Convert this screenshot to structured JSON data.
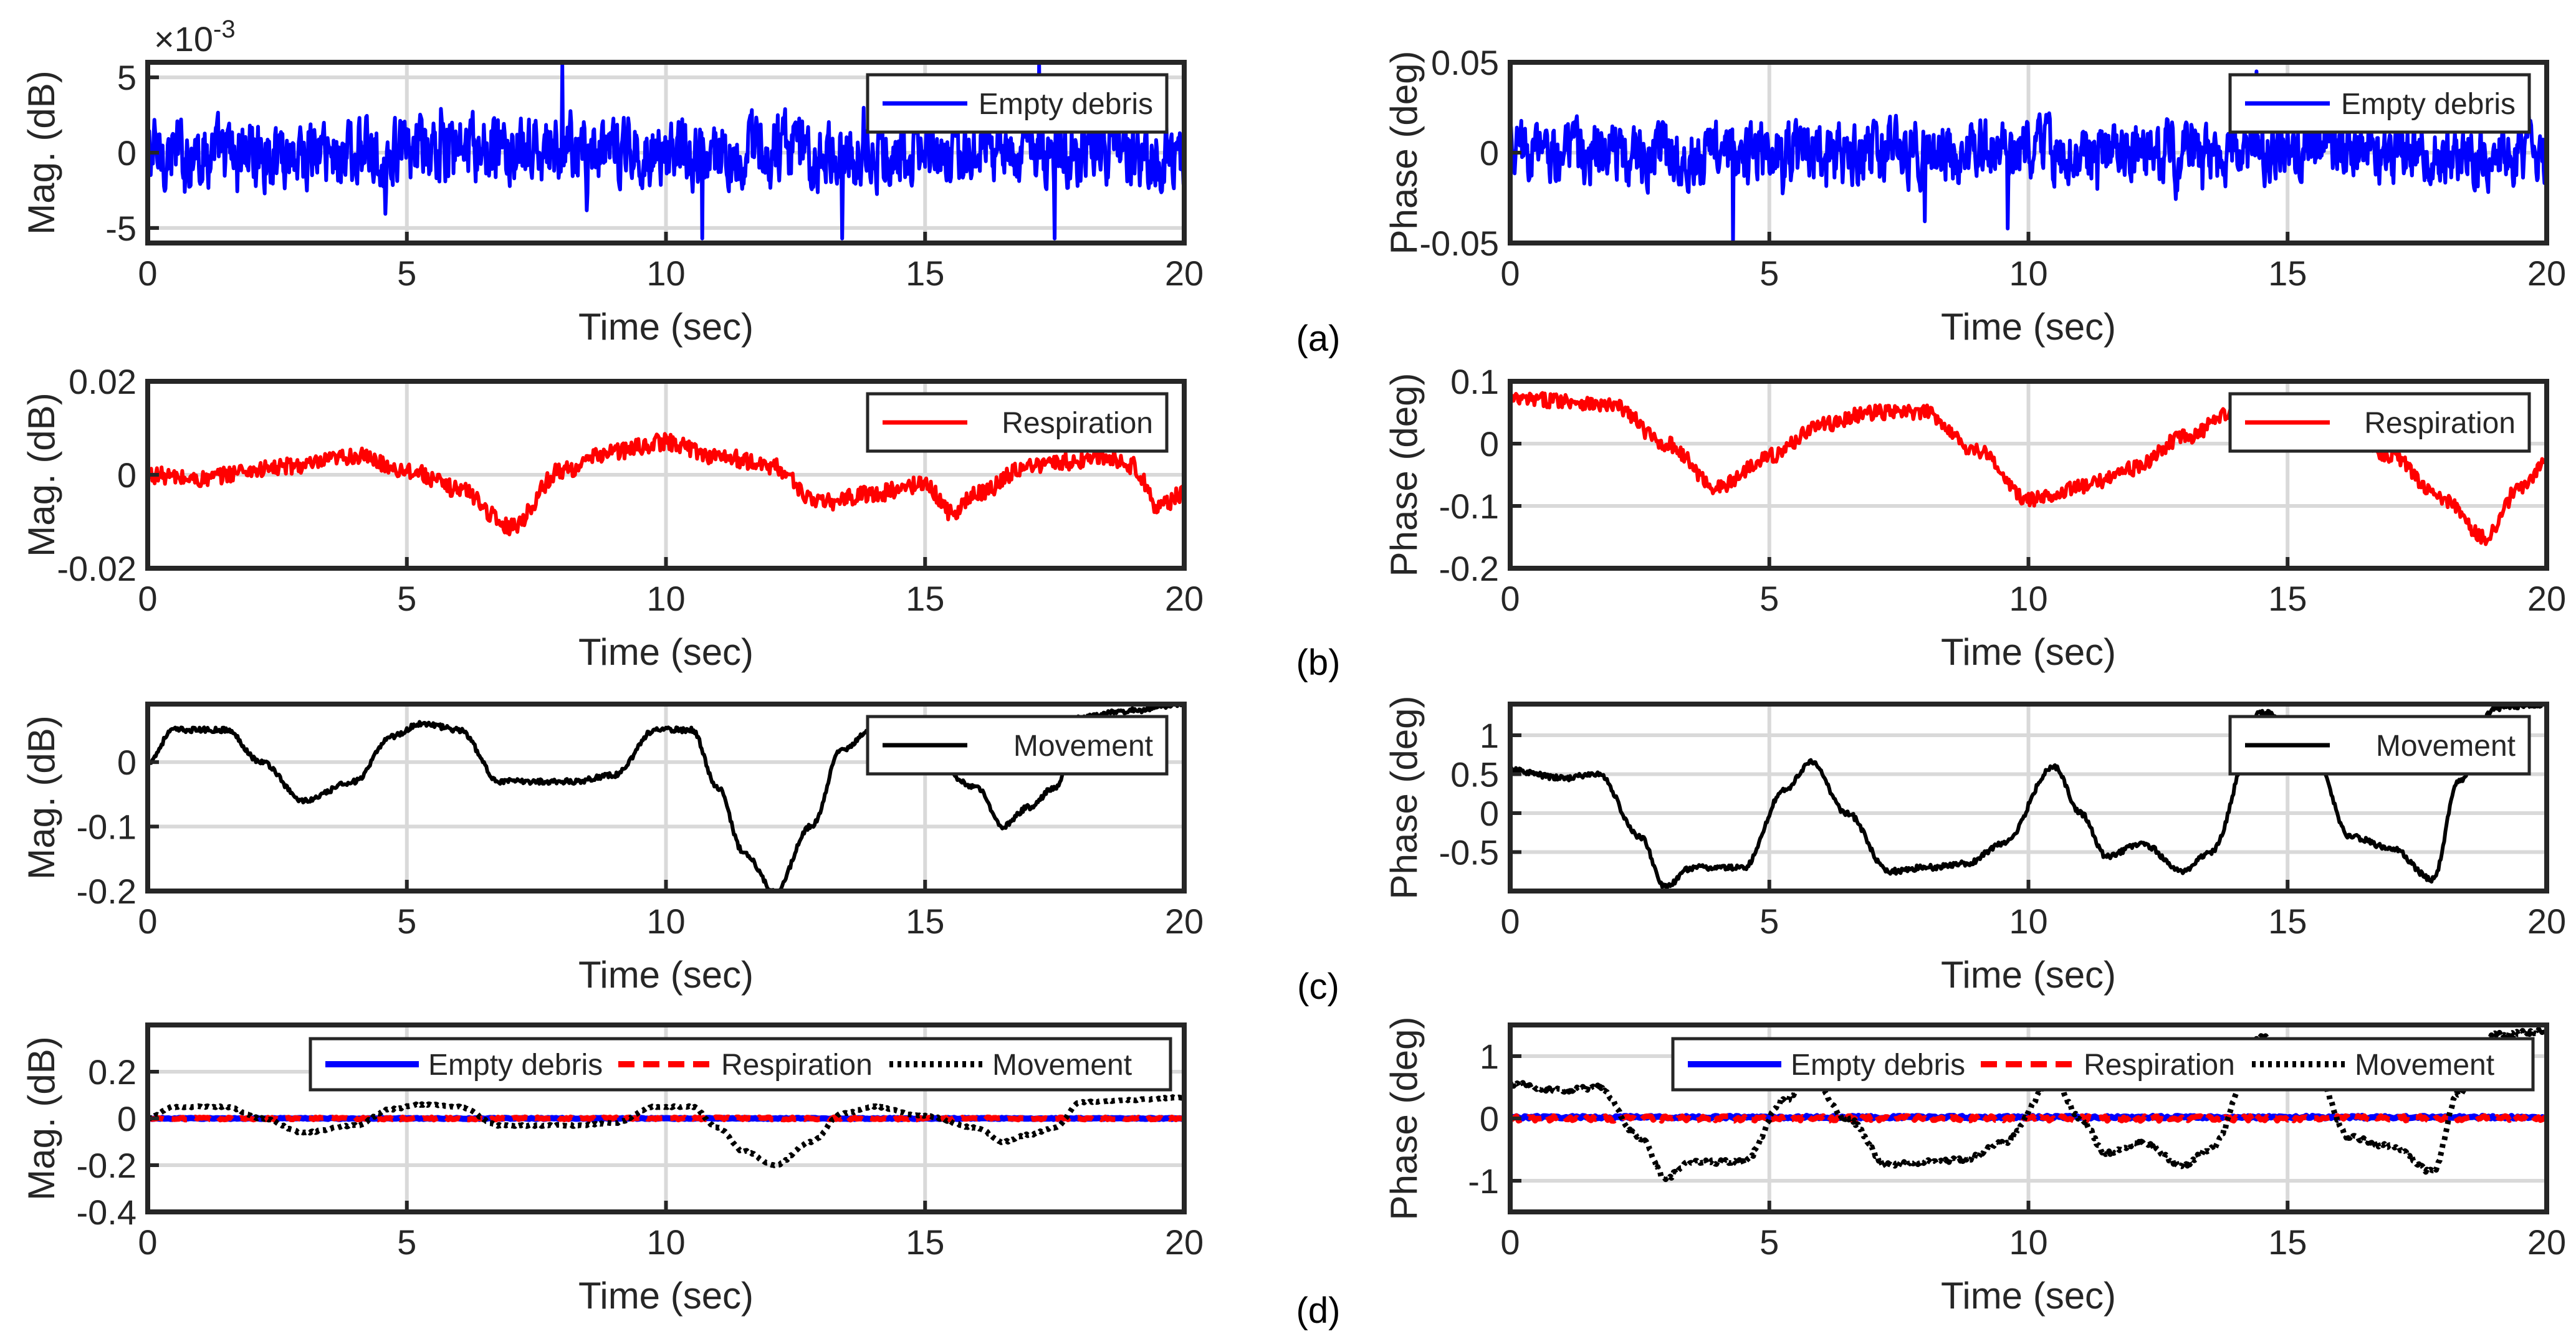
{
  "chart_data": [
    {
      "id": "a-mag",
      "panel": "a",
      "type": "line",
      "xlabel": "Time (sec)",
      "ylabel": "Mag. (dB)",
      "xlim": [
        0,
        20
      ],
      "ylim": [
        -0.006,
        0.006
      ],
      "xticks": [
        0,
        5,
        10,
        15,
        20
      ],
      "xticklabels": [
        "0",
        "5",
        "10",
        "15",
        "20"
      ],
      "yticks": [
        -0.005,
        0,
        0.005
      ],
      "yticklabels": [
        "-5",
        "0",
        "5"
      ],
      "exponent": "×10",
      "exponent_power": "-3",
      "legend_position": "top-right",
      "legend_layout": "vertical",
      "series": [
        {
          "name": "Empty debris",
          "color": "#0000ff",
          "style": "solid",
          "signal": "noise",
          "amplitude": 0.0024,
          "offset": 0,
          "spikes": [
            [
              10.7,
              -0.0057
            ],
            [
              13.4,
              -0.0057
            ],
            [
              17.2,
              0.006
            ],
            [
              17.5,
              -0.0057
            ],
            [
              8.0,
              0.0058
            ]
          ]
        }
      ]
    },
    {
      "id": "a-phase",
      "panel": "a",
      "type": "line",
      "xlabel": "Time (sec)",
      "ylabel": "Phase (deg)",
      "xlim": [
        0,
        20
      ],
      "ylim": [
        -0.05,
        0.05
      ],
      "xticks": [
        0,
        5,
        10,
        15,
        20
      ],
      "xticklabels": [
        "0",
        "5",
        "10",
        "15",
        "20"
      ],
      "yticks": [
        -0.05,
        0,
        0.05
      ],
      "yticklabels": [
        "-0.05",
        "0",
        "0.05"
      ],
      "legend_position": "top-right",
      "legend_layout": "vertical",
      "series": [
        {
          "name": "Empty debris",
          "color": "#0000ff",
          "style": "solid",
          "signal": "noise",
          "amplitude": 0.018,
          "offset": 0,
          "spikes": [
            [
              4.3,
              -0.05
            ],
            [
              14.4,
              0.045
            ],
            [
              9.6,
              -0.042
            ],
            [
              8.0,
              -0.038
            ]
          ]
        }
      ]
    },
    {
      "id": "b-mag",
      "panel": "b",
      "type": "line",
      "xlabel": "Time (sec)",
      "ylabel": "Mag. (dB)",
      "xlim": [
        0,
        20
      ],
      "ylim": [
        -0.02,
        0.02
      ],
      "xticks": [
        0,
        5,
        10,
        15,
        20
      ],
      "xticklabels": [
        "0",
        "5",
        "10",
        "15",
        "20"
      ],
      "yticks": [
        -0.02,
        0,
        0.02
      ],
      "yticklabels": [
        "-0.02",
        "0",
        "0.02"
      ],
      "legend_position": "top-right",
      "legend_layout": "vertical",
      "series": [
        {
          "name": "Respiration",
          "color": "#ff0000",
          "style": "solid",
          "signal": "trend",
          "noise": 0.0018,
          "x": [
            0,
            1,
            2,
            3,
            4,
            5,
            6,
            7,
            8,
            9,
            10,
            11,
            12,
            13,
            14,
            15,
            15.5,
            16,
            17,
            18,
            18.5,
            19,
            19.5,
            20
          ],
          "y": [
            0,
            -0.001,
            0.001,
            0.002,
            0.004,
            0.001,
            -0.003,
            -0.011,
            0.001,
            0.005,
            0.007,
            0.004,
            0.002,
            -0.006,
            -0.004,
            -0.002,
            -0.008,
            -0.004,
            0.002,
            0.003,
            0.004,
            0.002,
            -0.007,
            -0.004
          ]
        }
      ]
    },
    {
      "id": "b-phase",
      "panel": "b",
      "type": "line",
      "xlabel": "Time (sec)",
      "ylabel": "Phase (deg)",
      "xlim": [
        0,
        20
      ],
      "ylim": [
        -0.2,
        0.1
      ],
      "xticks": [
        0,
        5,
        10,
        15,
        20
      ],
      "xticklabels": [
        "0",
        "5",
        "10",
        "15",
        "20"
      ],
      "yticks": [
        -0.2,
        -0.1,
        0,
        0.1
      ],
      "yticklabels": [
        "-0.2",
        "-0.1",
        "0",
        "0.1"
      ],
      "legend_position": "top-right",
      "legend_layout": "vertical",
      "series": [
        {
          "name": "Respiration",
          "color": "#ff0000",
          "style": "solid",
          "signal": "trend",
          "noise": 0.012,
          "x": [
            0,
            1,
            2,
            3,
            4,
            5,
            6,
            7,
            8,
            9,
            10,
            11,
            12,
            13,
            14,
            15,
            16,
            17,
            18,
            18.8,
            19.5,
            20
          ],
          "y": [
            0.07,
            0.07,
            0.06,
            0.0,
            -0.07,
            -0.02,
            0.03,
            0.05,
            0.05,
            -0.01,
            -0.09,
            -0.07,
            -0.04,
            0.01,
            0.05,
            0.06,
            0.04,
            -0.02,
            -0.09,
            -0.15,
            -0.07,
            -0.03
          ]
        }
      ]
    },
    {
      "id": "c-mag",
      "panel": "c",
      "type": "line",
      "xlabel": "Time (sec)",
      "ylabel": "Mag. (dB)",
      "xlim": [
        0,
        20
      ],
      "ylim": [
        -0.2,
        0.09
      ],
      "xticks": [
        0,
        5,
        10,
        15,
        20
      ],
      "xticklabels": [
        "0",
        "5",
        "10",
        "15",
        "20"
      ],
      "yticks": [
        -0.2,
        -0.1,
        0
      ],
      "yticklabels": [
        "-0.2",
        "-0.1",
        "0"
      ],
      "legend_position": "top-right",
      "legend_layout": "vertical",
      "series": [
        {
          "name": "Movement",
          "color": "#000000",
          "style": "solid",
          "signal": "trend",
          "noise": 0.004,
          "x": [
            0,
            0.5,
            1.5,
            2.2,
            3,
            4,
            4.7,
            5.3,
            6,
            6.8,
            7.5,
            8.2,
            9,
            9.8,
            10.5,
            11,
            11.5,
            12.1,
            12.8,
            13.4,
            14,
            15,
            16,
            16.5,
            17,
            17.5,
            18,
            19,
            20
          ],
          "y": [
            0.0,
            0.05,
            0.05,
            0.0,
            -0.06,
            -0.03,
            0.04,
            0.06,
            0.05,
            -0.03,
            -0.03,
            -0.03,
            -0.02,
            0.05,
            0.05,
            -0.04,
            -0.14,
            -0.2,
            -0.1,
            0.02,
            0.05,
            0.01,
            -0.04,
            -0.1,
            -0.07,
            -0.04,
            0.07,
            0.08,
            0.09
          ]
        }
      ]
    },
    {
      "id": "c-phase",
      "panel": "c",
      "type": "line",
      "xlabel": "Time (sec)",
      "ylabel": "Phase (deg)",
      "xlim": [
        0,
        20
      ],
      "ylim": [
        -1,
        1.4
      ],
      "xticks": [
        0,
        5,
        10,
        15,
        20
      ],
      "xticklabels": [
        "0",
        "5",
        "10",
        "15",
        "20"
      ],
      "yticks": [
        -0.5,
        0,
        0.5,
        1
      ],
      "yticklabels": [
        "-0.5",
        "0",
        "0.5",
        "1"
      ],
      "legend_position": "top-right",
      "legend_layout": "vertical",
      "series": [
        {
          "name": "Movement",
          "color": "#000000",
          "style": "solid",
          "signal": "trend",
          "noise": 0.035,
          "x": [
            0,
            1,
            1.7,
            2.5,
            3,
            3.5,
            4.5,
            5.3,
            5.8,
            6.5,
            7.3,
            8,
            8.8,
            9.5,
            10.5,
            11,
            11.5,
            12.2,
            13,
            13.5,
            14.5,
            15.5,
            16.2,
            17,
            17.8,
            18.3,
            19,
            20
          ],
          "y": [
            0.55,
            0.45,
            0.5,
            -0.3,
            -0.95,
            -0.7,
            -0.7,
            0.3,
            0.65,
            0.0,
            -0.75,
            -0.7,
            -0.65,
            -0.4,
            0.6,
            0.0,
            -0.55,
            -0.4,
            -0.75,
            -0.5,
            1.3,
            0.8,
            -0.3,
            -0.45,
            -0.85,
            0.4,
            1.35,
            1.4
          ]
        }
      ]
    },
    {
      "id": "d-mag",
      "panel": "d",
      "type": "line",
      "xlabel": "Time (sec)",
      "ylabel": "Mag. (dB)",
      "xlim": [
        0,
        20
      ],
      "ylim": [
        -0.4,
        0.4
      ],
      "xticks": [
        0,
        5,
        10,
        15,
        20
      ],
      "xticklabels": [
        "0",
        "5",
        "10",
        "15",
        "20"
      ],
      "yticks": [
        -0.4,
        -0.2,
        0,
        0.2
      ],
      "yticklabels": [
        "-0.4",
        "-0.2",
        "0",
        "0.2"
      ],
      "legend_position": "top",
      "legend_layout": "horizontal",
      "series": [
        {
          "name": "Empty debris",
          "color": "#0000ff",
          "style": "solid",
          "signal": "flat",
          "value": 0,
          "noise": 0.002
        },
        {
          "name": "Respiration",
          "color": "#ff0000",
          "style": "dashed",
          "signal": "flat",
          "value": 0,
          "noise": 0.005
        },
        {
          "name": "Movement",
          "color": "#000000",
          "style": "dotted",
          "signal": "trend",
          "noise": 0.003,
          "x": [
            0,
            0.5,
            1.5,
            2.2,
            3,
            4,
            4.7,
            5.3,
            6,
            6.8,
            7.5,
            8.2,
            9,
            9.8,
            10.5,
            11,
            11.5,
            12.1,
            12.8,
            13.4,
            14,
            15,
            16,
            16.5,
            17,
            17.5,
            18,
            19,
            20
          ],
          "y": [
            0.0,
            0.05,
            0.05,
            0.0,
            -0.06,
            -0.03,
            0.04,
            0.06,
            0.05,
            -0.03,
            -0.03,
            -0.03,
            -0.02,
            0.05,
            0.05,
            -0.04,
            -0.14,
            -0.2,
            -0.1,
            0.02,
            0.05,
            0.01,
            -0.04,
            -0.1,
            -0.07,
            -0.04,
            0.07,
            0.08,
            0.09
          ]
        }
      ]
    },
    {
      "id": "d-phase",
      "panel": "d",
      "type": "line",
      "xlabel": "Time (sec)",
      "ylabel": "Phase (deg)",
      "xlim": [
        0,
        20
      ],
      "ylim": [
        -1.5,
        1.5
      ],
      "xticks": [
        0,
        5,
        10,
        15,
        20
      ],
      "xticklabels": [
        "0",
        "5",
        "10",
        "15",
        "20"
      ],
      "yticks": [
        -1,
        0,
        1
      ],
      "yticklabels": [
        "-1",
        "0",
        "1"
      ],
      "legend_position": "top",
      "legend_layout": "horizontal",
      "series": [
        {
          "name": "Empty debris",
          "color": "#0000ff",
          "style": "solid",
          "signal": "flat",
          "value": 0.02,
          "noise": 0.02
        },
        {
          "name": "Respiration",
          "color": "#ff0000",
          "style": "dashed",
          "signal": "flat",
          "value": 0.0,
          "noise": 0.04
        },
        {
          "name": "Movement",
          "color": "#000000",
          "style": "dotted",
          "signal": "trend",
          "noise": 0.035,
          "x": [
            0,
            1,
            1.7,
            2.5,
            3,
            3.5,
            4.5,
            5.3,
            5.8,
            6.5,
            7.3,
            8,
            8.8,
            9.5,
            10.5,
            11,
            11.5,
            12.2,
            13,
            13.5,
            14.5,
            15.5,
            16.2,
            17,
            17.8,
            18.3,
            19,
            20
          ],
          "y": [
            0.55,
            0.45,
            0.5,
            -0.3,
            -0.95,
            -0.7,
            -0.7,
            0.3,
            0.65,
            0.0,
            -0.75,
            -0.7,
            -0.65,
            -0.4,
            0.6,
            0.0,
            -0.55,
            -0.4,
            -0.75,
            -0.5,
            1.3,
            0.8,
            -0.3,
            -0.45,
            -0.85,
            0.4,
            1.35,
            1.4
          ]
        }
      ]
    }
  ],
  "subfigure_labels": [
    "(a)",
    "(b)",
    "(c)",
    "(d)"
  ]
}
